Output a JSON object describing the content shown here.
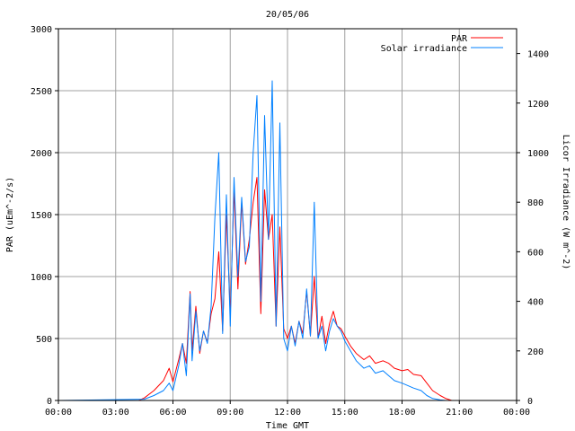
{
  "chart_data": {
    "type": "line",
    "title": "20/05/06",
    "xlabel": "Time GMT",
    "ylabel_left": "PAR (uEm^-2/s)",
    "ylabel_right": "Licor Irradiance (W m^-2)",
    "x_ticks": [
      "00:00",
      "03:00",
      "06:00",
      "09:00",
      "12:00",
      "15:00",
      "18:00",
      "21:00",
      "00:00"
    ],
    "x_range_hours": [
      0,
      24
    ],
    "ylim_left": [
      0,
      3000
    ],
    "y_ticks_left": [
      "0",
      "500",
      "1000",
      "1500",
      "2000",
      "2500",
      "3000"
    ],
    "ylim_right": [
      0,
      1500
    ],
    "y_ticks_right": [
      "0",
      "200",
      "400",
      "600",
      "800",
      "1000",
      "1200",
      "1400"
    ],
    "grid": true,
    "legend_position": "top-right",
    "series": [
      {
        "name": "PAR",
        "axis": "left",
        "color": "#ff0000",
        "x": [
          0,
          4.2,
          4.5,
          5.0,
          5.5,
          5.8,
          6.0,
          6.3,
          6.5,
          6.7,
          6.9,
          7.0,
          7.2,
          7.4,
          7.6,
          7.8,
          8.0,
          8.2,
          8.4,
          8.6,
          8.8,
          9.0,
          9.2,
          9.4,
          9.6,
          9.8,
          10.0,
          10.2,
          10.4,
          10.6,
          10.8,
          11.0,
          11.2,
          11.4,
          11.6,
          11.8,
          12.0,
          12.2,
          12.4,
          12.6,
          12.8,
          13.0,
          13.2,
          13.4,
          13.6,
          13.8,
          14.0,
          14.2,
          14.4,
          14.6,
          14.8,
          15.0,
          15.3,
          15.6,
          16.0,
          16.3,
          16.6,
          17.0,
          17.3,
          17.6,
          18.0,
          18.3,
          18.6,
          19.0,
          19.3,
          19.6,
          20.0,
          20.3,
          20.6,
          21.0,
          24
        ],
        "values": [
          0,
          0,
          20,
          80,
          160,
          260,
          150,
          330,
          460,
          300,
          880,
          400,
          760,
          380,
          560,
          470,
          700,
          820,
          1200,
          560,
          1500,
          700,
          1700,
          900,
          1600,
          1100,
          1300,
          1600,
          1800,
          700,
          1700,
          1300,
          1500,
          600,
          1400,
          580,
          500,
          600,
          460,
          640,
          540,
          880,
          520,
          1000,
          500,
          680,
          460,
          620,
          720,
          600,
          580,
          520,
          440,
          380,
          330,
          360,
          300,
          320,
          300,
          260,
          240,
          250,
          210,
          200,
          140,
          80,
          40,
          15,
          0,
          0,
          0
        ]
      },
      {
        "name": "Solar irradiance",
        "axis": "right",
        "color": "#0080ff",
        "x": [
          0,
          4.5,
          5.0,
          5.5,
          5.8,
          6.0,
          6.3,
          6.5,
          6.7,
          6.9,
          7.0,
          7.2,
          7.4,
          7.6,
          7.8,
          8.0,
          8.2,
          8.4,
          8.6,
          8.8,
          9.0,
          9.2,
          9.4,
          9.6,
          9.8,
          10.0,
          10.2,
          10.4,
          10.6,
          10.8,
          11.0,
          11.2,
          11.4,
          11.6,
          11.8,
          12.0,
          12.2,
          12.4,
          12.6,
          12.8,
          13.0,
          13.2,
          13.4,
          13.6,
          13.8,
          14.0,
          14.2,
          14.4,
          14.6,
          14.8,
          15.0,
          15.3,
          15.6,
          16.0,
          16.3,
          16.6,
          17.0,
          17.3,
          17.6,
          18.0,
          18.3,
          18.6,
          19.0,
          19.3,
          19.6,
          20.0,
          20.3,
          21.0,
          24
        ],
        "values": [
          0,
          5,
          20,
          40,
          70,
          40,
          140,
          230,
          100,
          430,
          160,
          360,
          200,
          280,
          230,
          380,
          740,
          1000,
          270,
          830,
          300,
          900,
          500,
          820,
          560,
          620,
          1000,
          1230,
          400,
          1150,
          650,
          1290,
          300,
          1120,
          250,
          200,
          300,
          220,
          320,
          250,
          450,
          260,
          800,
          250,
          300,
          200,
          280,
          330,
          300,
          280,
          240,
          200,
          160,
          130,
          140,
          110,
          120,
          100,
          80,
          70,
          60,
          50,
          40,
          20,
          8,
          2,
          0,
          0,
          0
        ]
      }
    ]
  }
}
